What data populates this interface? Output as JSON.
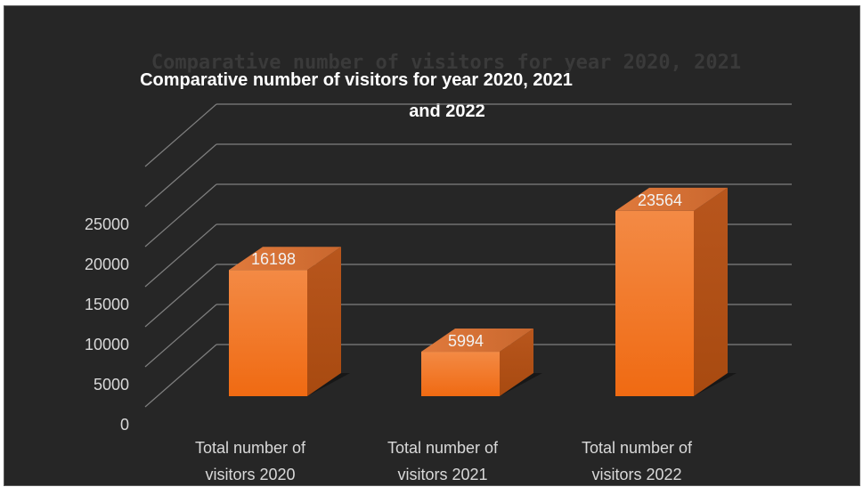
{
  "chart_data": {
    "type": "bar",
    "title": "Comparative number of visitors for year 2020, 2021 and 2022",
    "title_lines": [
      "Comparative number of visitors for year 2020, 2021",
      "and 2022"
    ],
    "categories": [
      [
        "Total number of",
        "visitors 2020"
      ],
      [
        "Total number of",
        "visitors 2021"
      ],
      [
        "Total number of",
        "visitors 2022"
      ]
    ],
    "values": [
      16198,
      5994,
      23564
    ],
    "data_labels": [
      "16198",
      "5994",
      "23564"
    ],
    "y_ticks": [
      "0",
      "5000",
      "10000",
      "15000",
      "20000",
      "25000"
    ],
    "ylim": [
      0,
      25000
    ],
    "grid": true,
    "three_d": true,
    "bar_color": "#f08a3e",
    "background": "#262626",
    "xlabel": "",
    "ylabel": ""
  }
}
